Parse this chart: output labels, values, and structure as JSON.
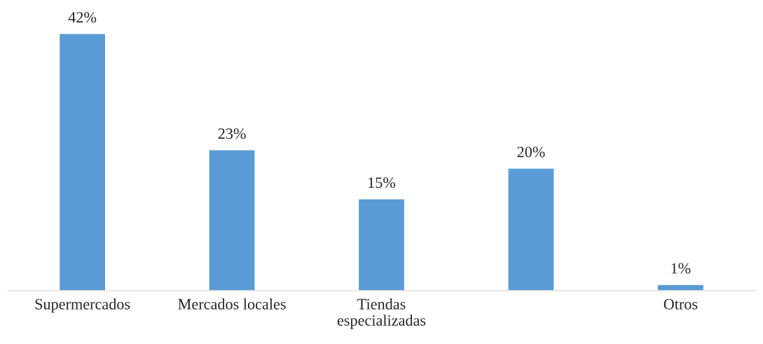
{
  "chart_data": {
    "type": "bar",
    "categories": [
      "Supermercados",
      "Mercados locales",
      "Tiendas\nespecializadas",
      null,
      "Otros"
    ],
    "values": [
      42,
      23,
      15,
      20,
      1
    ],
    "value_labels": [
      "42%",
      "23%",
      "15%",
      "20%",
      "1%"
    ],
    "color": "#5b9bd5",
    "grid": false,
    "legend": false
  }
}
